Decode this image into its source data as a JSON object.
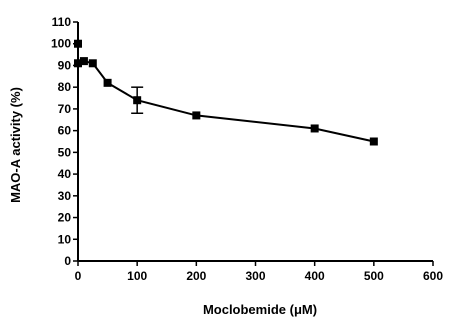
{
  "chart_data": {
    "type": "line",
    "xlabel": "Moclobemide (μM)",
    "ylabel": "MAO-A activity (%)",
    "xlim": [
      0,
      600
    ],
    "ylim": [
      0,
      110
    ],
    "x_ticks": [
      0,
      100,
      200,
      300,
      400,
      500,
      600
    ],
    "y_ticks": [
      0,
      10,
      20,
      30,
      40,
      50,
      60,
      70,
      80,
      90,
      100,
      110
    ],
    "grid": false,
    "legend": "none",
    "marker": "square",
    "color": "#000000",
    "series": [
      {
        "x": [
          0,
          0,
          10,
          25,
          50,
          100,
          200,
          400,
          500
        ],
        "y": [
          100,
          91,
          92,
          91,
          82,
          74,
          67,
          61,
          55
        ],
        "yerr": [
          0,
          0,
          0,
          0,
          0,
          6,
          0,
          0,
          0
        ]
      }
    ]
  }
}
